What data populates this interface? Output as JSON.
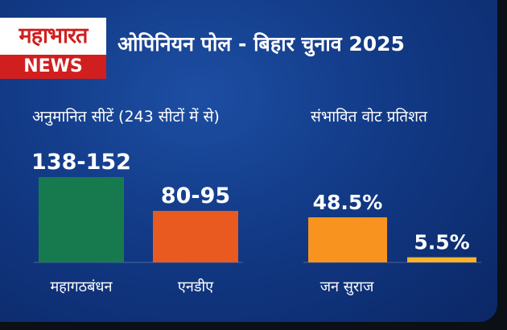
{
  "brand": {
    "logo_top": "महाभारत",
    "logo_bottom": "NEWS"
  },
  "headline": "ओपिनियन पोल - बिहार चुनाव 2025",
  "colors": {
    "background": "#123a86",
    "logo_red": "#d11f1f",
    "mahagathbandhan": "#177a4f",
    "nda": "#e85a1f",
    "jan_suraaj_vote": "#f7931e",
    "other_vote": "#fbb32a"
  },
  "chart_data": [
    {
      "type": "bar",
      "title": "अनुमानित सीटें (243 सीटों में से)",
      "categories": [
        "महागठबंधन",
        "एनडीए"
      ],
      "values": [
        145,
        87.5
      ],
      "data_labels": [
        "138-152",
        "80-95"
      ],
      "ranges": [
        [
          138,
          152
        ],
        [
          80,
          95
        ]
      ],
      "colors": [
        "#177a4f",
        "#e85a1f"
      ],
      "ylim": [
        0,
        145
      ]
    },
    {
      "type": "bar",
      "title": "संभावित वोट प्रतिशत",
      "categories": [
        "जन सुराज",
        ""
      ],
      "values": [
        48.5,
        5.5
      ],
      "data_labels": [
        "48.5%",
        "5.5%"
      ],
      "colors": [
        "#f7931e",
        "#fbb32a"
      ]
    }
  ]
}
